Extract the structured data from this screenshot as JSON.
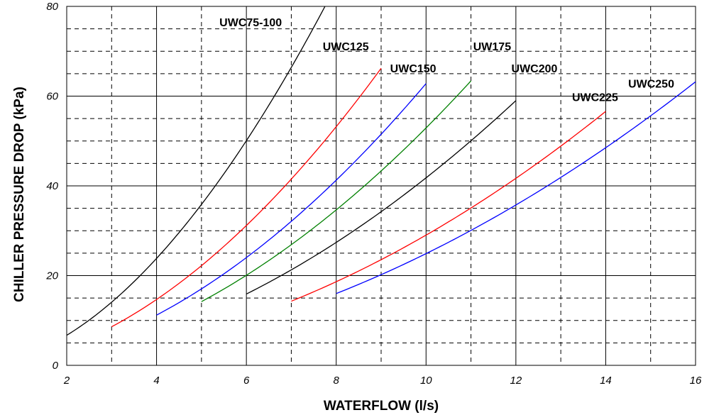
{
  "chart_data": {
    "type": "line",
    "title": "",
    "xlabel": "WATERFLOW (l/s)",
    "ylabel": "CHILLER PRESSURE DROP (kPa)",
    "xlim": [
      2,
      16
    ],
    "ylim": [
      0,
      80
    ],
    "x_ticks": [
      "2",
      "4",
      "6",
      "8",
      "10",
      "12",
      "14",
      "16"
    ],
    "y_ticks": [
      "0",
      "20",
      "40",
      "60",
      "80"
    ],
    "grid": {
      "major": true,
      "minor_dashed": true,
      "x_minor_step": 1,
      "y_minor_step": 5
    },
    "legend": "none",
    "series": [
      {
        "name": "UWC75-100",
        "color": "#000000",
        "exponent": 1.9,
        "x": [
          2,
          3,
          4,
          5,
          6,
          7,
          7.75
        ],
        "y": [
          6.7,
          14.1,
          22.2,
          33.7,
          47.9,
          64.4,
          80
        ]
      },
      {
        "name": "UWC125",
        "color": "#ff0000",
        "exponent": 1.9,
        "x": [
          3,
          4,
          5,
          6,
          7,
          8,
          9
        ],
        "y": [
          8.6,
          14.8,
          21.3,
          30.3,
          40.5,
          52.6,
          66.2
        ]
      },
      {
        "name": "UWC150",
        "color": "#0000ff",
        "exponent": 1.9,
        "x": [
          4,
          5,
          6,
          7,
          8,
          9,
          10
        ],
        "y": [
          11.2,
          16.8,
          23.5,
          31.0,
          40.4,
          51.0,
          62.8
        ]
      },
      {
        "name": "UW175",
        "color": "#008000",
        "exponent": 1.9,
        "x": [
          5,
          6,
          7,
          8,
          9,
          10,
          11
        ],
        "y": [
          14.2,
          20.1,
          26.5,
          34.5,
          42.6,
          52.7,
          63.4
        ]
      },
      {
        "name": "UWC200",
        "color": "#000000",
        "exponent": 1.9,
        "x": [
          6,
          7,
          8,
          9,
          10,
          11,
          12
        ],
        "y": [
          15.9,
          21.3,
          27.1,
          33.6,
          41.0,
          49.6,
          59.0
        ]
      },
      {
        "name": "UWC225",
        "color": "#ff0000",
        "exponent": 1.9,
        "x": [
          7,
          8,
          9,
          10,
          11,
          12,
          13,
          14
        ],
        "y": [
          14.3,
          18.5,
          23.3,
          28.7,
          34.8,
          41.4,
          48.8,
          56.6
        ]
      },
      {
        "name": "UWC250",
        "color": "#0000ff",
        "exponent": 1.9,
        "x": [
          8,
          9,
          10,
          11,
          12,
          13,
          14,
          15,
          16
        ],
        "y": [
          16.0,
          20.0,
          24.6,
          29.6,
          35.1,
          41.4,
          48.2,
          55.4,
          63.2
        ]
      }
    ],
    "annotations": [
      {
        "text": "UWC75-100",
        "x": 5.4,
        "y": 75.6
      },
      {
        "text": "UWC125",
        "x": 7.7,
        "y": 70.2
      },
      {
        "text": "UWC150",
        "x": 9.2,
        "y": 65.3
      },
      {
        "text": "UW175",
        "x": 11.05,
        "y": 70.2
      },
      {
        "text": "UWC200",
        "x": 11.9,
        "y": 65.3
      },
      {
        "text": "UWC225",
        "x": 13.25,
        "y": 58.9
      },
      {
        "text": "UWC250",
        "x": 14.5,
        "y": 61.9
      }
    ]
  }
}
